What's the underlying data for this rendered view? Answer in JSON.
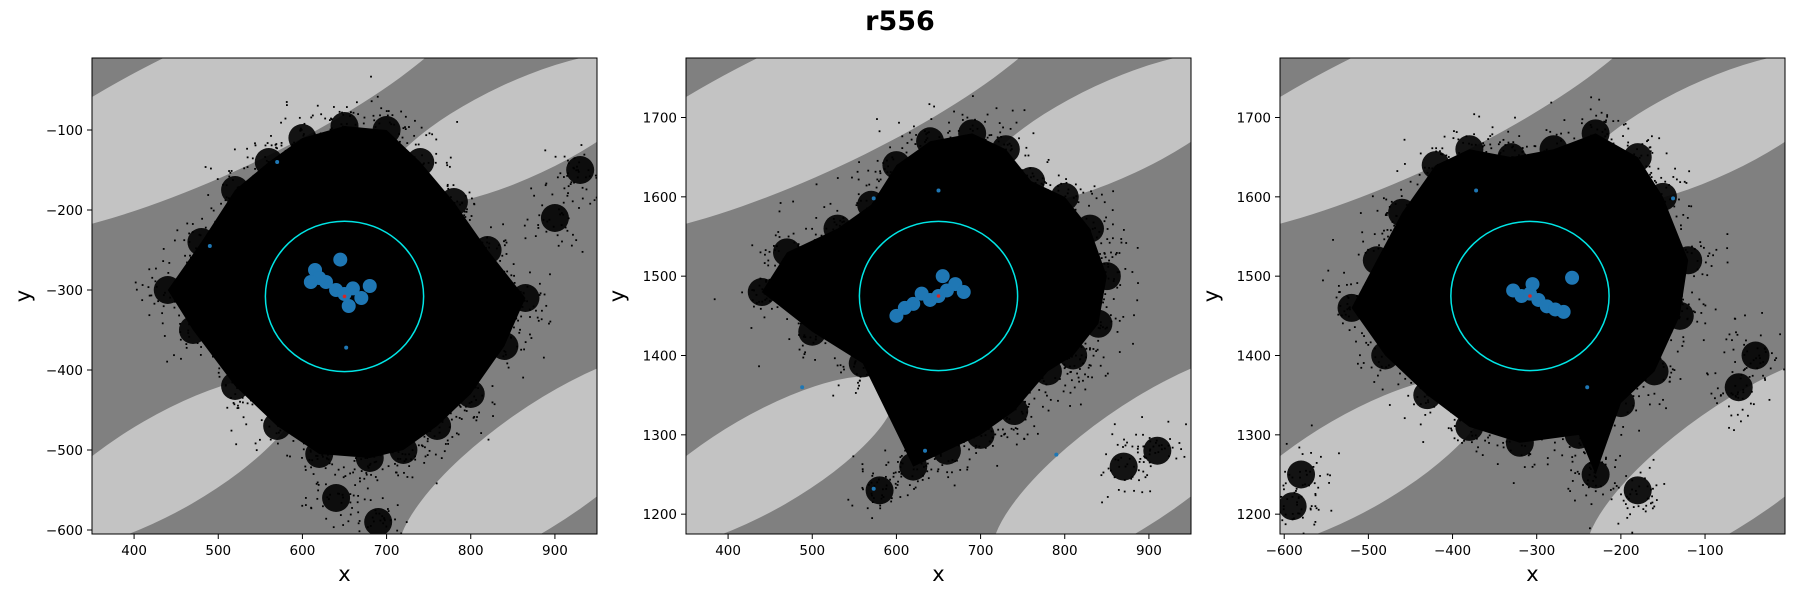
{
  "figure": {
    "title": "r556"
  },
  "colors": {
    "background_dark": "#808080",
    "background_light": "#d9d9d9",
    "cloud": "#000000",
    "core": "#1f77b4",
    "center": "#d62728",
    "circle": "#00e5e5"
  },
  "chart_data": [
    {
      "type": "scatter",
      "title": "",
      "xlabel": "x",
      "ylabel": "y",
      "xlim": [
        350,
        950
      ],
      "ylim": [
        -605,
        -10
      ],
      "xticks": [
        400,
        500,
        600,
        700,
        800,
        900
      ],
      "yticks": [
        -600,
        -500,
        -400,
        -300,
        -200,
        -100
      ],
      "center": [
        650,
        -308
      ],
      "circle_radius": 94,
      "series": [
        {
          "role": "cloud",
          "points": [
            [
              440,
              -300
            ],
            [
              480,
              -240
            ],
            [
              520,
              -175
            ],
            [
              560,
              -140
            ],
            [
              600,
              -110
            ],
            [
              650,
              -95
            ],
            [
              700,
              -100
            ],
            [
              740,
              -140
            ],
            [
              780,
              -190
            ],
            [
              820,
              -250
            ],
            [
              865,
              -310
            ],
            [
              840,
              -370
            ],
            [
              800,
              -430
            ],
            [
              760,
              -470
            ],
            [
              720,
              -500
            ],
            [
              680,
              -510
            ],
            [
              620,
              -505
            ],
            [
              570,
              -470
            ],
            [
              520,
              -420
            ],
            [
              470,
              -350
            ],
            [
              640,
              -560
            ],
            [
              690,
              -590
            ],
            [
              930,
              -150
            ],
            [
              900,
              -210
            ]
          ]
        },
        {
          "role": "core",
          "points": [
            [
              628,
              -290
            ],
            [
              640,
              -300
            ],
            [
              650,
              -305
            ],
            [
              660,
              -298
            ],
            [
              670,
              -310
            ],
            [
              655,
              -320
            ],
            [
              615,
              -275
            ],
            [
              620,
              -285
            ],
            [
              610,
              -290
            ],
            [
              680,
              -295
            ],
            [
              645,
              -262
            ],
            [
              652,
              -372
            ],
            [
              570,
              -140
            ],
            [
              490,
              -245
            ]
          ]
        },
        {
          "role": "center",
          "points": [
            [
              650,
              -308
            ]
          ]
        }
      ]
    },
    {
      "type": "scatter",
      "title": "",
      "xlabel": "x",
      "ylabel": "y",
      "xlim": [
        350,
        950
      ],
      "ylim": [
        1175,
        1775
      ],
      "xticks": [
        400,
        500,
        600,
        700,
        800,
        900
      ],
      "yticks": [
        1200,
        1300,
        1400,
        1500,
        1600,
        1700
      ],
      "center": [
        650,
        1475
      ],
      "circle_radius": 94,
      "series": [
        {
          "role": "cloud",
          "points": [
            [
              440,
              1480
            ],
            [
              470,
              1530
            ],
            [
              530,
              1560
            ],
            [
              570,
              1590
            ],
            [
              600,
              1640
            ],
            [
              640,
              1670
            ],
            [
              690,
              1680
            ],
            [
              730,
              1660
            ],
            [
              760,
              1620
            ],
            [
              800,
              1600
            ],
            [
              830,
              1560
            ],
            [
              850,
              1500
            ],
            [
              840,
              1440
            ],
            [
              810,
              1400
            ],
            [
              780,
              1380
            ],
            [
              740,
              1330
            ],
            [
              700,
              1300
            ],
            [
              660,
              1280
            ],
            [
              620,
              1260
            ],
            [
              580,
              1230
            ],
            [
              560,
              1390
            ],
            [
              500,
              1430
            ],
            [
              910,
              1280
            ],
            [
              870,
              1260
            ]
          ]
        },
        {
          "role": "core",
          "points": [
            [
              640,
              1470
            ],
            [
              650,
              1475
            ],
            [
              660,
              1482
            ],
            [
              670,
              1490
            ],
            [
              630,
              1478
            ],
            [
              620,
              1465
            ],
            [
              610,
              1460
            ],
            [
              600,
              1450
            ],
            [
              680,
              1480
            ],
            [
              655,
              1500
            ],
            [
              650,
              1608
            ],
            [
              573,
              1598
            ],
            [
              634,
              1280
            ],
            [
              573,
              1232
            ],
            [
              488,
              1360
            ],
            [
              790,
              1275
            ]
          ]
        },
        {
          "role": "center",
          "points": [
            [
              650,
              1475
            ]
          ]
        }
      ]
    },
    {
      "type": "scatter",
      "title": "",
      "xlabel": "x",
      "ylabel": "y",
      "xlim": [
        -605,
        -5
      ],
      "ylim": [
        1175,
        1775
      ],
      "xticks": [
        -600,
        -500,
        -400,
        -300,
        -200,
        -100
      ],
      "yticks": [
        1200,
        1300,
        1400,
        1500,
        1600,
        1700
      ],
      "center": [
        -308,
        1475
      ],
      "circle_radius": 94,
      "series": [
        {
          "role": "cloud",
          "points": [
            [
              -520,
              1460
            ],
            [
              -490,
              1520
            ],
            [
              -460,
              1580
            ],
            [
              -420,
              1640
            ],
            [
              -380,
              1660
            ],
            [
              -330,
              1650
            ],
            [
              -280,
              1660
            ],
            [
              -230,
              1680
            ],
            [
              -180,
              1650
            ],
            [
              -150,
              1600
            ],
            [
              -120,
              1520
            ],
            [
              -130,
              1450
            ],
            [
              -160,
              1380
            ],
            [
              -200,
              1340
            ],
            [
              -250,
              1300
            ],
            [
              -320,
              1290
            ],
            [
              -380,
              1310
            ],
            [
              -430,
              1350
            ],
            [
              -480,
              1400
            ],
            [
              -580,
              1250
            ],
            [
              -590,
              1210
            ],
            [
              -40,
              1400
            ],
            [
              -60,
              1360
            ],
            [
              -230,
              1250
            ],
            [
              -180,
              1230
            ]
          ]
        },
        {
          "role": "core",
          "points": [
            [
              -318,
              1475
            ],
            [
              -308,
              1478
            ],
            [
              -298,
              1470
            ],
            [
              -288,
              1462
            ],
            [
              -328,
              1482
            ],
            [
              -305,
              1490
            ],
            [
              -278,
              1458
            ],
            [
              -268,
              1455
            ],
            [
              -258,
              1498
            ],
            [
              -372,
              1608
            ],
            [
              -138,
              1598
            ],
            [
              -240,
              1360
            ]
          ]
        },
        {
          "role": "center",
          "points": [
            [
              -308,
              1475
            ]
          ]
        }
      ]
    }
  ]
}
